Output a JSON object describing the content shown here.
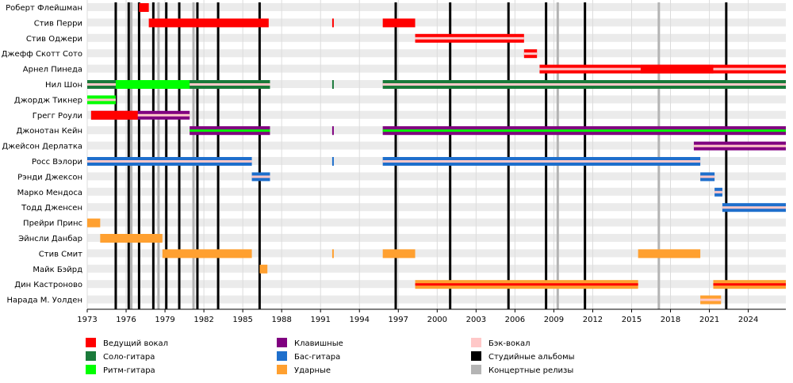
{
  "chart_data": {
    "type": "timeline",
    "title": "",
    "x_range": [
      1973.0,
      2026.9
    ],
    "x_ticks": [
      "1973",
      "1976",
      "1979",
      "1982",
      "1985",
      "1988",
      "1991",
      "1994",
      "1997",
      "2000",
      "2003",
      "2006",
      "2009",
      "2012",
      "2015",
      "2018",
      "2021",
      "2024"
    ],
    "members": [
      "Роберт Флейшман",
      "Стив Перри",
      "Стив Оджери",
      "Джефф Скотт Сото",
      "Арнел Пинеда",
      "Нил Шон",
      "Джордж Тикнер",
      "Грегг Роули",
      "Джонотан Кейн",
      "Джейсон Дерлатка",
      "Росс Вэлори",
      "Рэнди Джексон",
      "Марко Мендоса",
      "Тодд Дженсен",
      "Прейри Принс",
      "Эйнсли Данбар",
      "Стив Смит",
      "Майк Бэйрд",
      "Дин Кастроново",
      "Нарада М. Уолден"
    ],
    "roles": {
      "lead_vocals": {
        "label": "Ведущий вокал",
        "color": "#ff0000"
      },
      "lead_guitar": {
        "label": "Соло-гитара",
        "color": "#1a7a3a"
      },
      "rhythm_guitar": {
        "label": "Ритм-гитара",
        "color": "#00ff00"
      },
      "keyboards": {
        "label": "Клавишные",
        "color": "#800080"
      },
      "bass": {
        "label": "Бас-гитара",
        "color": "#1e6fcc"
      },
      "drums": {
        "label": "Ударные",
        "color": "#ffa030"
      },
      "backing_vocals": {
        "label": "Бэк-вокал",
        "color": "#ffc8c8"
      },
      "studio_albums": {
        "label": "Студийные альбомы",
        "color": "#000000"
      },
      "live_releases": {
        "label": "Концертные релизы",
        "color": "#b4b4b4"
      }
    },
    "legend_columns": [
      [
        "lead_vocals",
        "lead_guitar",
        "rhythm_guitar"
      ],
      [
        "keyboards",
        "bass",
        "drums"
      ],
      [
        "backing_vocals",
        "studio_albums",
        "live_releases"
      ]
    ],
    "studio_albums": [
      1975.2,
      1976.2,
      1977.0,
      1978.1,
      1979.1,
      1980.1,
      1981.5,
      1983.1,
      1986.3,
      1996.8,
      2001.0,
      2005.5,
      2008.4,
      2011.4,
      2022.3
    ],
    "live_releases": [
      1976.4,
      1978.5,
      1981.2,
      2009.3,
      2017.1
    ],
    "bars": [
      {
        "member": 0,
        "role": "lead_vocals",
        "start": 1977.0,
        "end": 1977.75
      },
      {
        "member": 1,
        "role": "lead_vocals",
        "start": 1977.75,
        "end": 1987.0
      },
      {
        "member": 1,
        "role": "lead_vocals",
        "start": 1991.9,
        "end": 1992.0
      },
      {
        "member": 1,
        "role": "lead_vocals",
        "start": 1995.8,
        "end": 1998.3
      },
      {
        "member": 2,
        "role": "lead_vocals",
        "start": 1998.3,
        "end": 2006.7,
        "accent": "backing_vocals"
      },
      {
        "member": 3,
        "role": "lead_vocals",
        "start": 2006.7,
        "end": 2007.7,
        "accent": "backing_vocals"
      },
      {
        "member": 4,
        "role": "lead_vocals",
        "start": 2007.9,
        "end": 2026.9,
        "accent": "backing_vocals"
      },
      {
        "member": 4,
        "role": "lead_vocals",
        "start": 2015.7,
        "end": 2021.3
      },
      {
        "member": 5,
        "role": "lead_guitar",
        "start": 1973.0,
        "end": 1987.1,
        "accent": "backing_vocals"
      },
      {
        "member": 5,
        "role": "rhythm_guitar",
        "start": 1975.2,
        "end": 1980.9
      },
      {
        "member": 5,
        "role": "lead_guitar",
        "start": 1991.9,
        "end": 1992.0
      },
      {
        "member": 5,
        "role": "lead_guitar",
        "start": 1995.8,
        "end": 2026.9,
        "accent": "backing_vocals"
      },
      {
        "member": 6,
        "role": "rhythm_guitar",
        "start": 1973.0,
        "end": 1975.2,
        "accent": "backing_vocals"
      },
      {
        "member": 7,
        "role": "keyboards",
        "start": 1973.3,
        "end": 1980.9,
        "accent": "backing_vocals"
      },
      {
        "member": 7,
        "role": "lead_vocals",
        "start": 1973.3,
        "end": 1976.9
      },
      {
        "member": 8,
        "role": "keyboards",
        "start": 1980.9,
        "end": 1987.1,
        "accent": "rhythm_guitar"
      },
      {
        "member": 8,
        "role": "keyboards",
        "start": 1991.9,
        "end": 1992.0
      },
      {
        "member": 8,
        "role": "keyboards",
        "start": 1995.8,
        "end": 2026.9,
        "accent": "rhythm_guitar"
      },
      {
        "member": 9,
        "role": "keyboards",
        "start": 2019.8,
        "end": 2026.9,
        "accent": "backing_vocals"
      },
      {
        "member": 10,
        "role": "bass",
        "start": 1973.0,
        "end": 1985.7,
        "accent": "backing_vocals"
      },
      {
        "member": 10,
        "role": "bass",
        "start": 1991.9,
        "end": 1992.0
      },
      {
        "member": 10,
        "role": "bass",
        "start": 1995.8,
        "end": 2020.3,
        "accent": "backing_vocals"
      },
      {
        "member": 11,
        "role": "bass",
        "start": 1985.7,
        "end": 1987.1,
        "accent": "backing_vocals"
      },
      {
        "member": 11,
        "role": "bass",
        "start": 2020.3,
        "end": 2021.4,
        "accent": "backing_vocals"
      },
      {
        "member": 12,
        "role": "bass",
        "start": 2021.4,
        "end": 2022.0,
        "accent": "backing_vocals"
      },
      {
        "member": 13,
        "role": "bass",
        "start": 2022.0,
        "end": 2026.9,
        "accent": "backing_vocals"
      },
      {
        "member": 14,
        "role": "drums",
        "start": 1973.0,
        "end": 1974.0
      },
      {
        "member": 15,
        "role": "drums",
        "start": 1974.0,
        "end": 1978.8
      },
      {
        "member": 16,
        "role": "drums",
        "start": 1978.8,
        "end": 1985.7
      },
      {
        "member": 16,
        "role": "drums",
        "start": 1991.9,
        "end": 1992.0
      },
      {
        "member": 16,
        "role": "drums",
        "start": 1995.8,
        "end": 1998.3
      },
      {
        "member": 16,
        "role": "drums",
        "start": 2015.5,
        "end": 2020.3
      },
      {
        "member": 17,
        "role": "drums",
        "start": 1986.3,
        "end": 1986.9
      },
      {
        "member": 18,
        "role": "drums",
        "start": 1998.3,
        "end": 2015.5,
        "accent": "lead_vocals"
      },
      {
        "member": 18,
        "role": "drums",
        "start": 2021.3,
        "end": 2026.9,
        "accent": "lead_vocals"
      },
      {
        "member": 19,
        "role": "drums",
        "start": 2020.3,
        "end": 2021.9,
        "accent": "backing_vocals"
      }
    ]
  }
}
